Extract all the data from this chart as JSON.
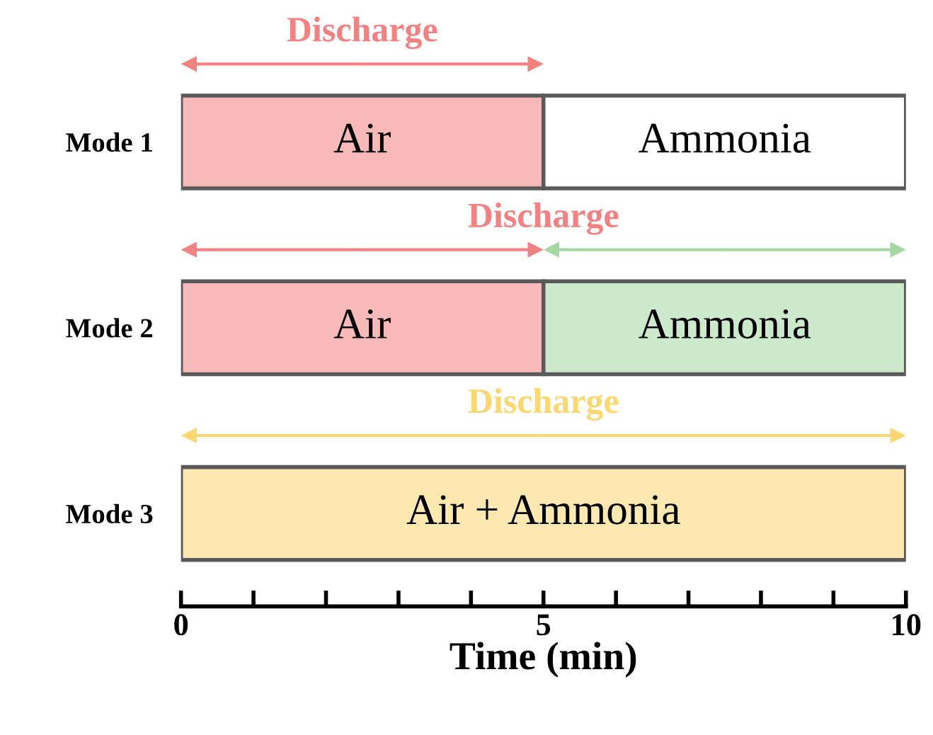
{
  "chart_data": {
    "type": "bar",
    "orientation": "horizontal",
    "stacked": true,
    "categories": [
      "Mode 1",
      "Mode 2",
      "Mode 3"
    ],
    "series": [
      {
        "name": "Air",
        "color": "#f8b9b9",
        "values": [
          5,
          5,
          null
        ]
      },
      {
        "name": "Ammonia",
        "colors": [
          "#ffffff",
          "#cde9cc",
          null
        ],
        "values": [
          5,
          5,
          null
        ]
      },
      {
        "name": "Air + Ammonia",
        "color": "#fde9b0",
        "values": [
          null,
          null,
          10
        ]
      }
    ],
    "xlim": [
      0,
      10
    ],
    "xticks": [
      0,
      {
        "value": 1,
        "label": null
      },
      {
        "value": 2,
        "label": null
      },
      {
        "value": 3,
        "label": null
      },
      {
        "value": 4,
        "label": null
      },
      5,
      {
        "value": 6,
        "label": null
      },
      {
        "value": 7,
        "label": null
      },
      {
        "value": 8,
        "label": null
      },
      {
        "value": 9,
        "label": null
      },
      10
    ],
    "xlabel": "Time (min)",
    "annotations": [
      "Discharge",
      "Discharge",
      "Discharge"
    ],
    "grid": false
  }
}
